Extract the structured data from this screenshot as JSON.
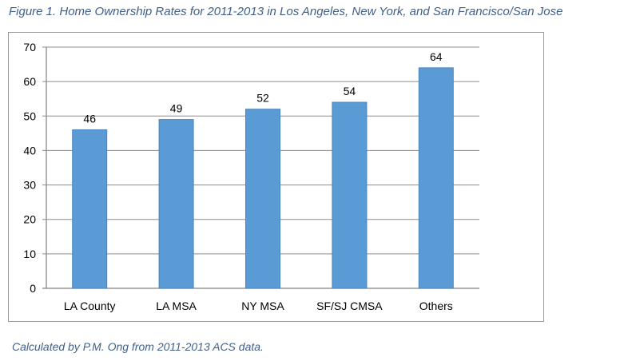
{
  "figure": {
    "title": "Figure 1. Home Ownership Rates for 2011-2013 in Los Angeles, New York, and San Francisco/San Jose",
    "source": "Calculated by P.M. Ong from 2011-2013 ACS data."
  },
  "chart_data": {
    "type": "bar",
    "categories": [
      "LA County",
      "LA MSA",
      "NY MSA",
      "SF/SJ CMSA",
      "Others"
    ],
    "values": [
      46,
      49,
      52,
      54,
      64
    ],
    "data_labels": [
      "46",
      "49",
      "52",
      "54",
      "64"
    ],
    "yticks": [
      0,
      10,
      20,
      30,
      40,
      50,
      60,
      70
    ],
    "ylim": [
      0,
      70
    ],
    "grid": true,
    "legend": "none",
    "bar_color": "#5b9bd5",
    "bar_edge_color": "#4a86bf"
  }
}
